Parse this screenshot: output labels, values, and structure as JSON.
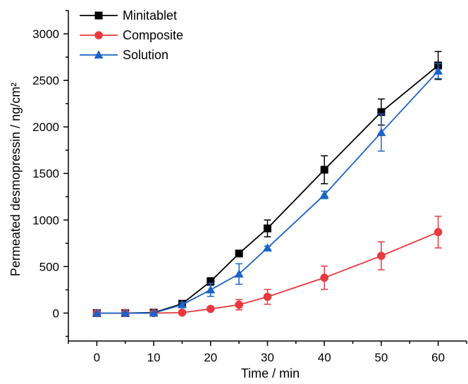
{
  "chart_data": {
    "type": "line",
    "title": "",
    "xlabel": "Time / min",
    "ylabel": "Permeated desmopressin / ng/cm²",
    "xlim": [
      -5,
      65
    ],
    "ylim": [
      -300,
      3250
    ],
    "xticks": [
      0,
      10,
      20,
      30,
      40,
      50,
      60
    ],
    "yticks": [
      0,
      500,
      1000,
      1500,
      2000,
      2500,
      3000
    ],
    "grid": false,
    "legend_position": "top-left",
    "x": [
      0,
      5,
      10,
      15,
      20,
      25,
      30,
      40,
      50,
      60
    ],
    "series": [
      {
        "name": "Minitablet",
        "color": "#000000",
        "marker": "square",
        "values": [
          0,
          0,
          5,
          100,
          340,
          640,
          910,
          1540,
          2160,
          2660
        ],
        "errors": [
          0,
          0,
          5,
          30,
          40,
          30,
          90,
          150,
          140,
          150
        ]
      },
      {
        "name": "Composite",
        "color": "#e8393e",
        "marker": "circle",
        "values": [
          0,
          0,
          0,
          5,
          45,
          90,
          175,
          380,
          615,
          870
        ],
        "errors": [
          0,
          0,
          0,
          3,
          20,
          55,
          80,
          125,
          150,
          170
        ]
      },
      {
        "name": "Solution",
        "color": "#1a63c8",
        "marker": "triangle",
        "values": [
          0,
          0,
          0,
          90,
          250,
          420,
          700,
          1270,
          1940,
          2600
        ],
        "errors": [
          0,
          0,
          0,
          25,
          70,
          110,
          20,
          40,
          200,
          80
        ]
      }
    ]
  }
}
